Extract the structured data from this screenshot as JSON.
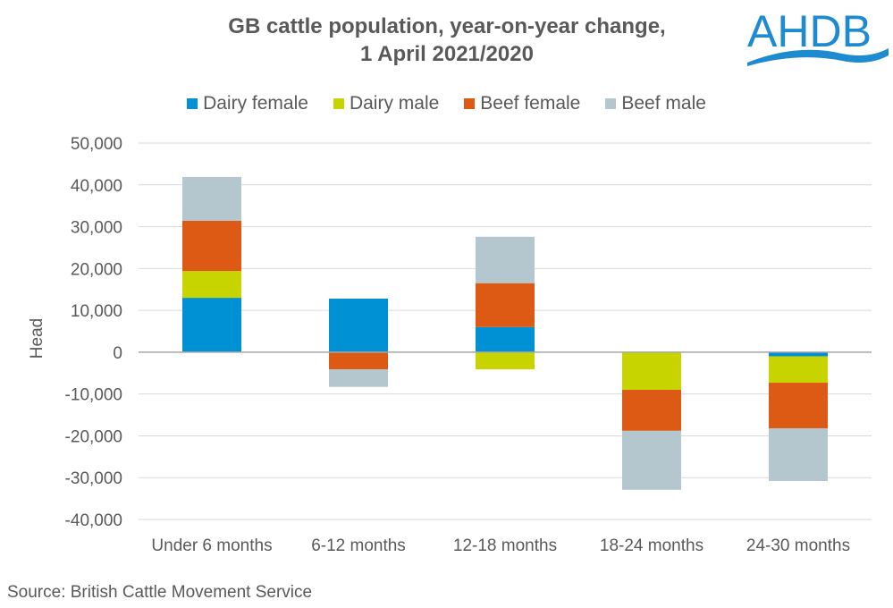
{
  "chart_data": {
    "type": "bar",
    "stacked": true,
    "title": "GB cattle population, year-on-year change, 1 April 2021/2020",
    "title_lines": [
      "GB cattle population, year-on-year change,",
      "1 April 2021/2020"
    ],
    "ylabel": "Head",
    "xlabel": "",
    "ylim": [
      -40000,
      50000
    ],
    "yticks": [
      50000,
      40000,
      30000,
      20000,
      10000,
      0,
      -10000,
      -20000,
      -30000,
      -40000
    ],
    "ytick_labels": [
      "50,000",
      "40,000",
      "30,000",
      "20,000",
      "10,000",
      "0",
      "-10,000",
      "-20,000",
      "-30,000",
      "-40,000"
    ],
    "grid": true,
    "legend_position": "top",
    "categories": [
      "Under 6 months",
      "6-12 months",
      "12-18 months",
      "18-24 months",
      "24-30 months"
    ],
    "series": [
      {
        "name": "Dairy female",
        "color": "#0090D4",
        "values": [
          13000,
          12800,
          6000,
          0,
          -1000
        ]
      },
      {
        "name": "Dairy male",
        "color": "#C8D400",
        "values": [
          6400,
          0,
          -4100,
          -9000,
          -6300
        ]
      },
      {
        "name": "Beef female",
        "color": "#DC5A14",
        "values": [
          12000,
          -4100,
          10500,
          -9800,
          -10900
        ]
      },
      {
        "name": "Beef male",
        "color": "#B4C6CE",
        "values": [
          10500,
          -4200,
          11100,
          -14100,
          -12600
        ]
      }
    ]
  },
  "source": "Source: British Cattle Movement Service",
  "logo": {
    "text": "AHDB",
    "color": "#1E8AD0"
  }
}
